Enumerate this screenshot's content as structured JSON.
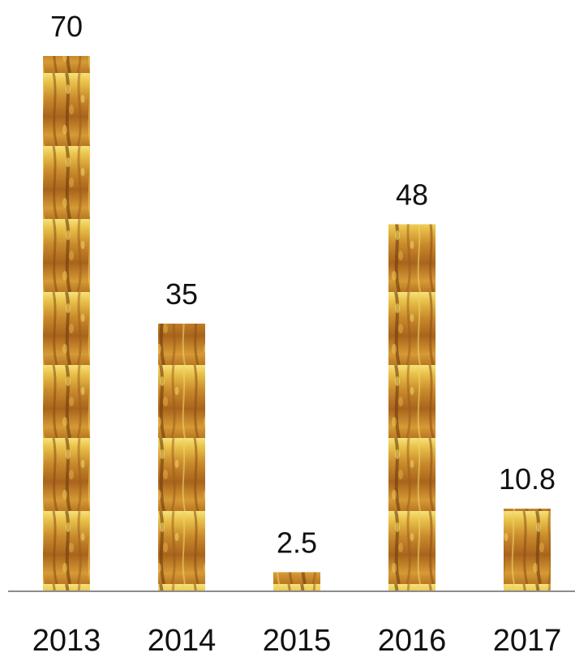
{
  "chart_data": {
    "type": "bar",
    "title": "",
    "xlabel": "",
    "ylabel": "",
    "categories": [
      "2013",
      "2014",
      "2015",
      "2016",
      "2017"
    ],
    "values": [
      70,
      35,
      2.5,
      48,
      10.8
    ],
    "data_labels": [
      "70",
      "35",
      "2.5",
      "48",
      "10.8"
    ],
    "ylim": [
      0,
      70
    ],
    "grid": false,
    "legend": "none",
    "bar_fill": "wheat-texture"
  }
}
